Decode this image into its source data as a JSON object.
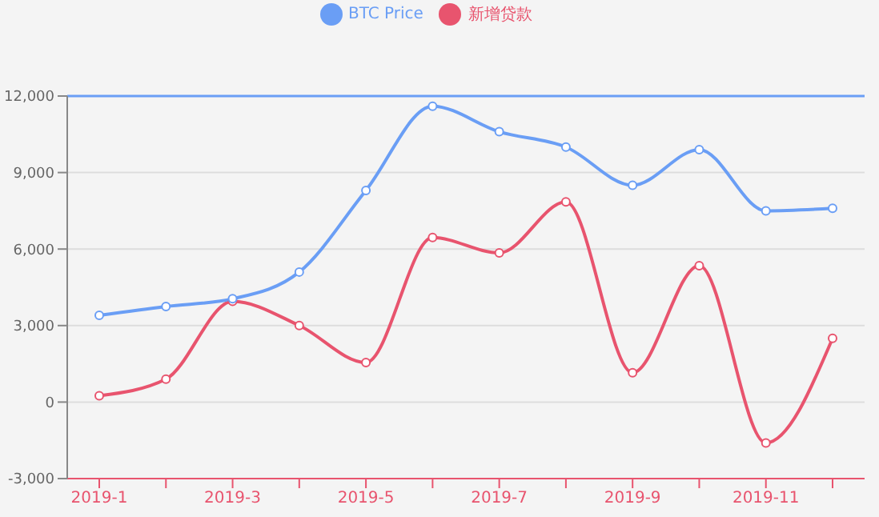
{
  "chart_data": {
    "type": "line",
    "categories": [
      "2019-1",
      null,
      "2019-3",
      null,
      "2019-5",
      null,
      "2019-7",
      null,
      "2019-9",
      null,
      "2019-11",
      null
    ],
    "series": [
      {
        "name": "BTC Price",
        "color": "#6a9ef5",
        "values": [
          3400,
          3750,
          4050,
          5100,
          8300,
          11600,
          10600,
          10000,
          8500,
          9900,
          7500,
          7600
        ]
      },
      {
        "name": "新增贷款",
        "color": "#e8546e",
        "values": [
          250,
          900,
          3950,
          3000,
          1550,
          6450,
          5850,
          7850,
          1150,
          5350,
          -1600,
          2500
        ]
      }
    ],
    "ylim": [
      -3000,
      12000
    ],
    "yticks": [
      {
        "value": -3000,
        "label": "-3,000"
      },
      0,
      {
        "value": 3000,
        "label": "3,000"
      },
      {
        "value": 6000,
        "label": "6,000"
      },
      {
        "value": 9000,
        "label": "9,000"
      },
      {
        "value": 12000,
        "label": "12,000"
      }
    ],
    "ref_lines": [
      {
        "axis": "y",
        "value": 12000,
        "color": "#6a9ef5"
      }
    ],
    "grid": "y",
    "legend": "top",
    "marker": "circle",
    "line_style": "solid"
  }
}
